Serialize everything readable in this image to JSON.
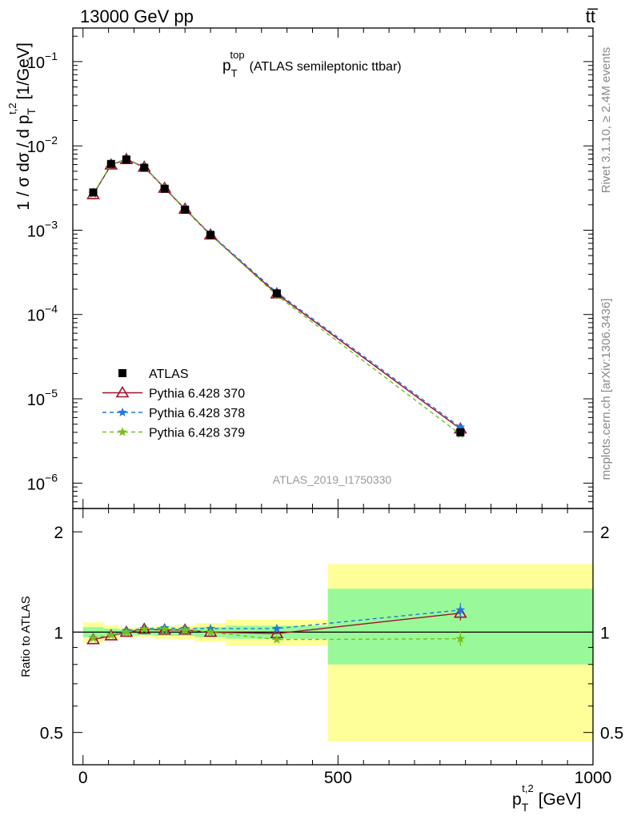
{
  "header": {
    "left": "13000 GeV pp",
    "right": "tt̅"
  },
  "side": {
    "rivet": "Rivet 3.1.10, ≥ 2.4M events",
    "mcplots": "mcplots.cern.ch [arXiv:1306.3436]"
  },
  "watermark": "ATLAS_2019_I1750330",
  "chart_data": [
    {
      "type": "line",
      "title": {
        "main": "p",
        "sub": "T",
        "sup": "top",
        "rest": "(ATLAS semileptonic ttbar)"
      },
      "ylabel": "1 / σ dσ / d p",
      "ylabel_sub": "T",
      "ylabel_sup": "t,2",
      "ylabel_unit": "[1/GeV]",
      "yscale": "log",
      "ylim": [
        5e-07,
        0.25
      ],
      "xlim": [
        -20,
        1000
      ],
      "ytick_bases": [
        "10",
        "10",
        "10",
        "10",
        "10",
        "10"
      ],
      "ytick_exps": [
        "−1",
        "−2",
        "−3",
        "−4",
        "−5",
        "−6"
      ],
      "ytick_values": [
        0.1,
        0.01,
        0.001,
        0.0001,
        1e-05,
        1e-06
      ],
      "x": [
        20,
        55,
        85,
        120,
        160,
        200,
        250,
        380,
        740
      ],
      "series": [
        {
          "name": "ATLAS",
          "color": "#000000",
          "marker": "square",
          "values": [
            0.0028,
            0.0061,
            0.0069,
            0.0055,
            0.0031,
            0.00175,
            0.00088,
            0.000178,
            4e-06
          ]
        },
        {
          "name": "Pythia 6.428 370",
          "color": "#a0102a",
          "marker": "triangle",
          "dash": "none",
          "values": [
            0.00265,
            0.00595,
            0.0069,
            0.0056,
            0.00315,
            0.00178,
            0.00088,
            0.000176,
            4.4e-06
          ]
        },
        {
          "name": "Pythia 6.428 378",
          "color": "#1f78e0",
          "marker": "star",
          "dash": "5,4",
          "values": [
            0.0027,
            0.006,
            0.007,
            0.00565,
            0.0032,
            0.0018,
            0.0009,
            0.000183,
            4.6e-06
          ]
        },
        {
          "name": "Pythia 6.428 379",
          "color": "#73c21a",
          "marker": "star",
          "dash": "5,4",
          "values": [
            0.0027,
            0.006,
            0.0069,
            0.0056,
            0.0032,
            0.00178,
            0.00088,
            0.000169,
            3.8e-06
          ]
        }
      ],
      "legend_position": "left-middle"
    },
    {
      "type": "line",
      "ylabel": "Ratio to ATLAS",
      "xlabel": "p",
      "xlabel_sub": "T",
      "xlabel_sup": "t,2",
      "xlabel_unit": "[GeV]",
      "yscale": "log",
      "ylim": [
        0.4,
        2.35
      ],
      "xlim": [
        -20,
        1000
      ],
      "xtick_labels": [
        "0",
        "500",
        "1000"
      ],
      "xtick_values": [
        0,
        500,
        1000
      ],
      "ytick_labels": [
        "2",
        "1",
        "0.5"
      ],
      "ytick_values": [
        2,
        1,
        0.5
      ],
      "reference": 1,
      "bands": [
        {
          "x0": 0,
          "x1": 40,
          "inner": [
            0.965,
            1.035
          ],
          "outer": [
            0.93,
            1.07
          ]
        },
        {
          "x0": 40,
          "x1": 70,
          "inner": [
            0.975,
            1.025
          ],
          "outer": [
            0.95,
            1.05
          ]
        },
        {
          "x0": 70,
          "x1": 100,
          "inner": [
            0.98,
            1.02
          ],
          "outer": [
            0.965,
            1.035
          ]
        },
        {
          "x0": 100,
          "x1": 140,
          "inner": [
            0.98,
            1.02
          ],
          "outer": [
            0.965,
            1.035
          ]
        },
        {
          "x0": 140,
          "x1": 180,
          "inner": [
            0.975,
            1.025
          ],
          "outer": [
            0.955,
            1.045
          ]
        },
        {
          "x0": 180,
          "x1": 220,
          "inner": [
            0.975,
            1.025
          ],
          "outer": [
            0.95,
            1.05
          ]
        },
        {
          "x0": 220,
          "x1": 280,
          "inner": [
            0.965,
            1.035
          ],
          "outer": [
            0.935,
            1.065
          ]
        },
        {
          "x0": 280,
          "x1": 480,
          "inner": [
            0.955,
            1.045
          ],
          "outer": [
            0.91,
            1.09
          ]
        },
        {
          "x0": 480,
          "x1": 1000,
          "inner": [
            0.8,
            1.35
          ],
          "outer": [
            0.47,
            1.6
          ]
        }
      ],
      "x": [
        20,
        55,
        85,
        120,
        160,
        200,
        250,
        380,
        740
      ],
      "series": [
        {
          "name": "Pythia 6.428 370",
          "color": "#a0102a",
          "marker": "triangle",
          "dash": "none",
          "values": [
            0.95,
            0.975,
            1.0,
            1.02,
            1.015,
            1.015,
            1.0,
            0.99,
            1.14
          ]
        },
        {
          "name": "Pythia 6.428 378",
          "color": "#1f78e0",
          "marker": "star",
          "dash": "5,4",
          "values": [
            0.96,
            0.98,
            1.01,
            1.025,
            1.03,
            1.025,
            1.025,
            1.025,
            1.165
          ]
        },
        {
          "name": "Pythia 6.428 379",
          "color": "#73c21a",
          "marker": "star",
          "dash": "5,4",
          "values": [
            0.96,
            0.98,
            1.0,
            1.02,
            1.02,
            1.015,
            1.0,
            0.95,
            0.955
          ]
        }
      ]
    }
  ]
}
